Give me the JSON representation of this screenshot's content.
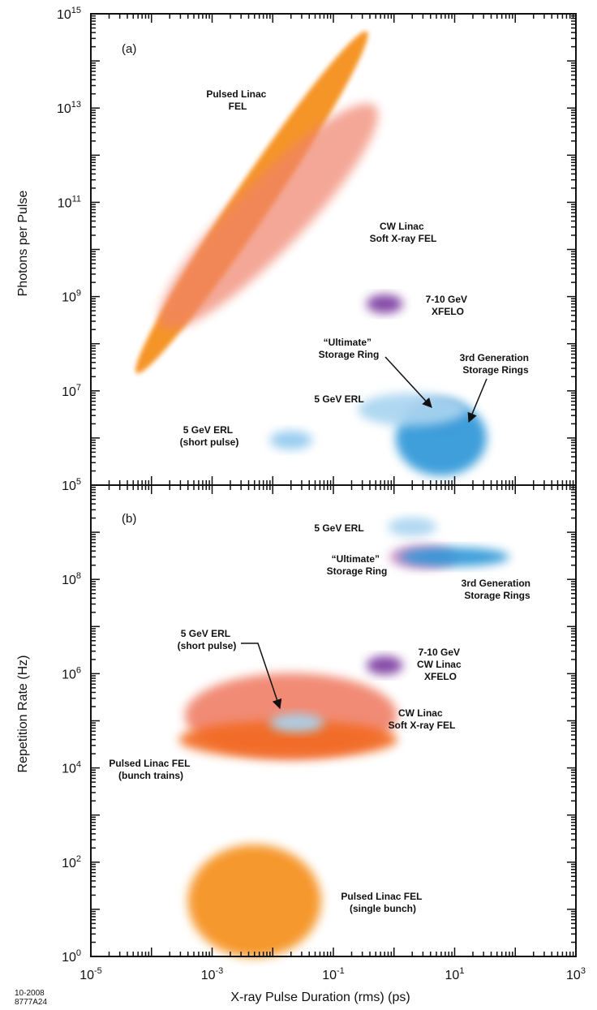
{
  "chart_data": [
    {
      "type": "scatter",
      "panel_label": "(a)",
      "xlabel": "X-ray Pulse Duration (rms)  (ps)",
      "ylabel": "Photons per Pulse",
      "xscale": "log",
      "yscale": "log",
      "xlim": [
        1e-05,
        1000
      ],
      "ylim": [
        100000,
        1000000000000000.0
      ],
      "x_ticks": [
        {
          "base": "10",
          "exp": "-5"
        },
        {
          "base": "10",
          "exp": "-3"
        },
        {
          "base": "10",
          "exp": "-1"
        },
        {
          "base": "10",
          "exp": "1"
        },
        {
          "base": "10",
          "exp": "3"
        }
      ],
      "y_ticks": [
        {
          "base": "10",
          "exp": "5"
        },
        {
          "base": "10",
          "exp": "7"
        },
        {
          "base": "10",
          "exp": "9"
        },
        {
          "base": "10",
          "exp": "11"
        },
        {
          "base": "10",
          "exp": "13"
        },
        {
          "base": "10",
          "exp": "15"
        }
      ],
      "regions": [
        {
          "name": "Pulsed Linac FEL",
          "color": "#f5901e",
          "x": 0.0045,
          "y": 100000000000.0,
          "x_span_decades": [
            0.6,
            0.4
          ],
          "y_span_decades": [
            3.8,
            3.8
          ],
          "tilt": "steep"
        },
        {
          "name": "CW Linac Soft X-ray FEL",
          "color": "#f0826a",
          "x": 0.0085,
          "y": 50000000000,
          "x_span_decades": [
            1.3,
            0.8
          ],
          "y_span_decades": [
            4,
            2.2
          ],
          "tilt": "diagonal"
        },
        {
          "name": "7-10 GeV XFELO",
          "color": "#7b3aa0",
          "x": 0.7,
          "y": 700000000,
          "x_span_decades": [
            0.3,
            0.3
          ],
          "y_span_decades": [
            0.2,
            0.2
          ]
        },
        {
          "name": "“Ultimate” Storage Ring",
          "color": "#c488c0",
          "x": 5,
          "y": 3000000,
          "x_span_decades": [
            0.45,
            0.45
          ],
          "y_span_decades": [
            0.3,
            0.3
          ]
        },
        {
          "name": "3rd Generation Storage Rings",
          "color": "#2e97d8",
          "x": 6,
          "y": 1000000,
          "x_span_decades": [
            0.75,
            0.75
          ],
          "y_span_decades": [
            0.8,
            0.8
          ]
        },
        {
          "name": "5 GeV ERL",
          "color": "#a9d4f0",
          "x": 2,
          "y": 4000000,
          "x_span_decades": [
            0.9,
            0.9
          ],
          "y_span_decades": [
            0.35,
            0.35
          ]
        },
        {
          "name": "5 GeV ERL (short pulse)",
          "color": "#93c9ee",
          "x": 0.02,
          "y": 900000,
          "x_span_decades": [
            0.35,
            0.35
          ],
          "y_span_decades": [
            0.2,
            0.2
          ]
        }
      ],
      "annotations": [
        {
          "lines": [
            "Pulsed Linac",
            "FEL"
          ]
        },
        {
          "lines": [
            "CW Linac",
            "Soft X-ray FEL"
          ]
        },
        {
          "lines": [
            "7-10 GeV",
            "XFELO"
          ]
        },
        {
          "lines": [
            "“Ultimate”",
            "Storage Ring"
          ]
        },
        {
          "lines": [
            "3rd Generation",
            "Storage Rings"
          ]
        },
        {
          "lines": [
            "5 GeV ERL"
          ]
        },
        {
          "lines": [
            "5 GeV ERL",
            "(short pulse)"
          ]
        }
      ]
    },
    {
      "type": "scatter",
      "panel_label": "(b)",
      "xlabel": "X-ray Pulse Duration (rms)  (ps)",
      "ylabel": "Repetition Rate  (Hz)",
      "xscale": "log",
      "yscale": "log",
      "xlim": [
        1e-05,
        1000
      ],
      "ylim": [
        1,
        10000000000
      ],
      "x_ticks": [
        {
          "base": "10",
          "exp": "-5"
        },
        {
          "base": "10",
          "exp": "-3"
        },
        {
          "base": "10",
          "exp": "-1"
        },
        {
          "base": "10",
          "exp": "1"
        },
        {
          "base": "10",
          "exp": "3"
        }
      ],
      "y_ticks": [
        {
          "base": "10",
          "exp": "0"
        },
        {
          "base": "10",
          "exp": "2"
        },
        {
          "base": "10",
          "exp": "4"
        },
        {
          "base": "10",
          "exp": "6"
        },
        {
          "base": "10",
          "exp": "8"
        }
      ],
      "regions": [
        {
          "name": "CW Linac Soft X-ray FEL",
          "color": "#f0826a",
          "x": 0.02,
          "y": 130000,
          "x_span_decades": [
            1.75,
            1.75
          ],
          "y_span_decades": [
            0.9,
            0.9
          ]
        },
        {
          "name": "Pulsed Linac FEL (bunch trains)",
          "color": "#f26a21",
          "x": 0.018,
          "y": 40000,
          "x_span_decades": [
            1.8,
            1.8
          ],
          "y_span_decades": [
            0.4,
            0.4
          ]
        },
        {
          "name": "5 GeV ERL (short pulse)",
          "color": "#a9d4f0",
          "x": 0.025,
          "y": 90000,
          "x_span_decades": [
            0.45,
            0.45
          ],
          "y_span_decades": [
            0.2,
            0.2
          ]
        },
        {
          "name": "5 GeV ERL",
          "color": "#a9d4f0",
          "x": 2,
          "y": 1300000000,
          "x_span_decades": [
            0.4,
            0.4
          ],
          "y_span_decades": [
            0.2,
            0.2
          ]
        },
        {
          "name": "“Ultimate” Storage Ring",
          "color": "#c488c0",
          "x": 3,
          "y": 300000000,
          "x_span_decades": [
            0.55,
            0.55
          ],
          "y_span_decades": [
            0.25,
            0.25
          ]
        },
        {
          "name": "3rd Generation Storage Rings",
          "color": "#2e97d8",
          "x": 10,
          "y": 300000000,
          "x_span_decades": [
            0.9,
            0.9
          ],
          "y_span_decades": [
            0.2,
            0.2
          ]
        },
        {
          "name": "7-10 GeV CW Linac XFELO",
          "color": "#7b3aa0",
          "x": 0.7,
          "y": 1500000,
          "x_span_decades": [
            0.3,
            0.3
          ],
          "y_span_decades": [
            0.2,
            0.2
          ]
        },
        {
          "name": "Pulsed Linac FEL (single bunch)",
          "color": "#f5901e",
          "x": 0.005,
          "y": 15,
          "x_span_decades": [
            1.1,
            1.1
          ],
          "y_span_decades": [
            1.2,
            1.2
          ]
        }
      ],
      "annotations": [
        {
          "lines": [
            "5 GeV ERL"
          ]
        },
        {
          "lines": [
            "“Ultimate”",
            "Storage Ring"
          ]
        },
        {
          "lines": [
            "3rd Generation",
            "Storage Rings"
          ]
        },
        {
          "lines": [
            "5 GeV ERL",
            "(short pulse)"
          ]
        },
        {
          "lines": [
            "7-10 GeV",
            "CW Linac",
            "XFELO"
          ]
        },
        {
          "lines": [
            "CW Linac",
            "Soft X-ray FEL"
          ]
        },
        {
          "lines": [
            "Pulsed Linac FEL",
            "(bunch trains)"
          ]
        },
        {
          "lines": [
            "Pulsed Linac FEL",
            "(single bunch)"
          ]
        }
      ]
    }
  ],
  "figure_code": [
    "10-2008",
    "8777A24"
  ]
}
